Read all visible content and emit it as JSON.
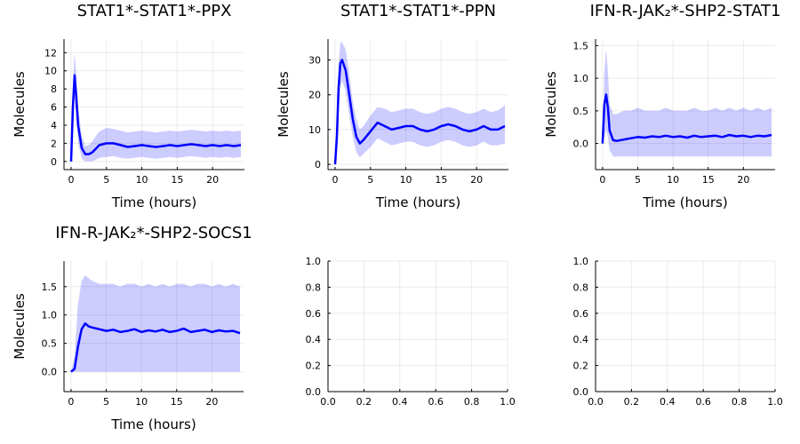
{
  "chart_data": [
    {
      "type": "line",
      "title": "STAT1*-STAT1*-PPX",
      "xlabel": "Time (hours)",
      "ylabel": "Molecules",
      "xlim": [
        -1,
        24.5
      ],
      "ylim": [
        -0.9,
        13.5
      ],
      "xticks": [
        0,
        5,
        10,
        15,
        20
      ],
      "yticks": [
        0,
        2,
        4,
        6,
        8,
        10,
        12
      ],
      "grid": true,
      "series_color": "#0000ff",
      "band_color": "#0000ff",
      "x": [
        0,
        0.25,
        0.5,
        0.75,
        1,
        1.5,
        2,
        2.5,
        3,
        3.5,
        4,
        5,
        6,
        7,
        8,
        9,
        10,
        11,
        12,
        13,
        14,
        15,
        16,
        17,
        18,
        19,
        20,
        21,
        22,
        23,
        24
      ],
      "mean": [
        0,
        6,
        9.5,
        7,
        4,
        1.5,
        0.8,
        0.8,
        1.0,
        1.4,
        1.8,
        2.0,
        2.0,
        1.8,
        1.6,
        1.7,
        1.8,
        1.7,
        1.6,
        1.7,
        1.8,
        1.7,
        1.8,
        1.9,
        1.8,
        1.7,
        1.8,
        1.7,
        1.8,
        1.7,
        1.8
      ],
      "lower": [
        0,
        3.5,
        7,
        4.5,
        2,
        0.3,
        0,
        0,
        0,
        0.2,
        0.4,
        0.5,
        0.6,
        0.4,
        0.3,
        0.4,
        0.5,
        0.4,
        0.3,
        0.4,
        0.5,
        0.4,
        0.5,
        0.6,
        0.5,
        0.4,
        0.5,
        0.4,
        0.5,
        0.4,
        0.5
      ],
      "upper": [
        0,
        8.5,
        12,
        9.5,
        6,
        2.8,
        1.7,
        1.8,
        2.2,
        2.8,
        3.3,
        3.7,
        3.6,
        3.4,
        3.2,
        3.3,
        3.4,
        3.3,
        3.2,
        3.3,
        3.4,
        3.3,
        3.4,
        3.5,
        3.4,
        3.3,
        3.4,
        3.3,
        3.4,
        3.3,
        3.4
      ]
    },
    {
      "type": "line",
      "title": "STAT1*-STAT1*-PPN",
      "xlabel": "Time (hours)",
      "ylabel": "Molecules",
      "xlim": [
        -1,
        24.5
      ],
      "ylim": [
        -1.5,
        36
      ],
      "xticks": [
        0,
        5,
        10,
        15,
        20
      ],
      "yticks": [
        0,
        10,
        20,
        30
      ],
      "grid": true,
      "series_color": "#0000ff",
      "band_color": "#0000ff",
      "x": [
        0,
        0.25,
        0.5,
        0.75,
        1,
        1.5,
        2,
        2.5,
        3,
        3.5,
        4,
        5,
        6,
        7,
        8,
        9,
        10,
        11,
        12,
        13,
        14,
        15,
        16,
        17,
        18,
        19,
        20,
        21,
        22,
        23,
        24
      ],
      "mean": [
        0,
        8,
        22,
        29,
        30,
        27,
        20,
        13,
        8,
        6,
        7,
        9.5,
        12,
        11,
        10,
        10.5,
        11,
        11,
        10,
        9.5,
        10,
        11,
        11.5,
        11,
        10,
        9.5,
        10,
        11,
        10,
        10,
        11
      ],
      "lower": [
        0,
        3,
        15,
        22,
        24,
        21,
        14,
        8,
        3.5,
        2,
        3,
        5,
        7.5,
        6.5,
        5.5,
        6,
        6.5,
        6.5,
        5.5,
        5,
        5.5,
        6.5,
        7,
        6.5,
        5.5,
        5,
        5.5,
        6.5,
        5.5,
        5.5,
        6
      ],
      "upper": [
        0,
        13,
        29,
        35,
        35,
        33,
        26,
        18,
        13,
        10,
        11,
        14,
        16.5,
        16,
        15,
        15.5,
        16,
        16,
        15,
        14.5,
        15,
        16,
        16.5,
        16,
        15,
        14.5,
        15,
        16,
        15,
        15.5,
        17
      ]
    },
    {
      "type": "line",
      "title": "IFN-R-JAK₂*-SHP2-STAT1",
      "xlabel": "Time (hours)",
      "ylabel": "Molecules",
      "xlim": [
        -1,
        24.5
      ],
      "ylim": [
        -0.4,
        1.6
      ],
      "xticks": [
        0,
        5,
        10,
        15,
        20
      ],
      "yticks": [
        0.0,
        0.5,
        1.0,
        1.5
      ],
      "grid": true,
      "series_color": "#0000ff",
      "band_color": "#0000ff",
      "x": [
        0,
        0.25,
        0.5,
        0.75,
        1,
        1.5,
        2,
        3,
        4,
        5,
        6,
        7,
        8,
        9,
        10,
        11,
        12,
        13,
        14,
        15,
        16,
        17,
        18,
        19,
        20,
        21,
        22,
        23,
        24
      ],
      "mean": [
        0,
        0.6,
        0.75,
        0.55,
        0.2,
        0.05,
        0.04,
        0.06,
        0.08,
        0.1,
        0.09,
        0.11,
        0.1,
        0.12,
        0.1,
        0.11,
        0.09,
        0.12,
        0.1,
        0.11,
        0.12,
        0.1,
        0.13,
        0.11,
        0.12,
        0.1,
        0.12,
        0.11,
        0.13
      ],
      "lower": [
        0,
        0.1,
        0.2,
        0.1,
        -0.1,
        -0.2,
        -0.2,
        -0.2,
        -0.2,
        -0.2,
        -0.2,
        -0.2,
        -0.2,
        -0.2,
        -0.2,
        -0.2,
        -0.2,
        -0.2,
        -0.2,
        -0.2,
        -0.2,
        -0.2,
        -0.2,
        -0.2,
        -0.2,
        -0.2,
        -0.2,
        -0.2,
        -0.2
      ],
      "upper": [
        0,
        1.1,
        1.45,
        1.1,
        0.6,
        0.45,
        0.45,
        0.5,
        0.5,
        0.55,
        0.5,
        0.5,
        0.5,
        0.55,
        0.5,
        0.5,
        0.5,
        0.55,
        0.5,
        0.5,
        0.55,
        0.5,
        0.55,
        0.5,
        0.55,
        0.5,
        0.55,
        0.5,
        0.55
      ]
    },
    {
      "type": "line",
      "title": "IFN-R-JAK₂*-SHP2-SOCS1",
      "xlabel": "Time (hours)",
      "ylabel": "Molecules",
      "xlim": [
        -1,
        24.5
      ],
      "ylim": [
        -0.35,
        1.95
      ],
      "xticks": [
        0,
        5,
        10,
        15,
        20
      ],
      "yticks": [
        0.0,
        0.5,
        1.0,
        1.5
      ],
      "grid": true,
      "series_color": "#0000ff",
      "band_color": "#0000ff",
      "x": [
        0,
        0.5,
        1,
        1.5,
        2,
        2.5,
        3,
        4,
        5,
        6,
        7,
        8,
        9,
        10,
        11,
        12,
        13,
        14,
        15,
        16,
        17,
        18,
        19,
        20,
        21,
        22,
        23,
        24
      ],
      "mean": [
        0,
        0.05,
        0.45,
        0.75,
        0.85,
        0.8,
        0.78,
        0.75,
        0.72,
        0.74,
        0.7,
        0.72,
        0.75,
        0.7,
        0.73,
        0.71,
        0.74,
        0.7,
        0.72,
        0.76,
        0.7,
        0.72,
        0.74,
        0.7,
        0.73,
        0.71,
        0.72,
        0.68
      ],
      "lower": [
        0,
        0,
        0,
        0,
        0,
        0,
        0,
        0,
        0,
        0,
        0,
        0,
        0,
        0,
        0,
        0,
        0,
        0,
        0,
        0,
        0,
        0,
        0,
        0,
        0,
        0,
        0,
        0
      ],
      "upper": [
        0,
        0.3,
        1.2,
        1.6,
        1.7,
        1.65,
        1.6,
        1.55,
        1.55,
        1.55,
        1.5,
        1.55,
        1.55,
        1.5,
        1.55,
        1.5,
        1.55,
        1.5,
        1.55,
        1.55,
        1.5,
        1.55,
        1.55,
        1.5,
        1.55,
        1.5,
        1.55,
        1.5
      ]
    },
    {
      "type": "line",
      "title": "",
      "xlabel": "",
      "ylabel": "",
      "xlim": [
        0,
        1
      ],
      "ylim": [
        0,
        1
      ],
      "xticks": [
        0.0,
        0.2,
        0.4,
        0.6,
        0.8,
        1.0
      ],
      "yticks": [
        0.0,
        0.2,
        0.4,
        0.6,
        0.8,
        1.0
      ],
      "grid": true
    },
    {
      "type": "line",
      "title": "",
      "xlabel": "",
      "ylabel": "",
      "xlim": [
        0,
        1
      ],
      "ylim": [
        0,
        1
      ],
      "xticks": [
        0.0,
        0.2,
        0.4,
        0.6,
        0.8,
        1.0
      ],
      "yticks": [
        0.0,
        0.2,
        0.4,
        0.6,
        0.8,
        1.0
      ],
      "grid": true
    }
  ]
}
